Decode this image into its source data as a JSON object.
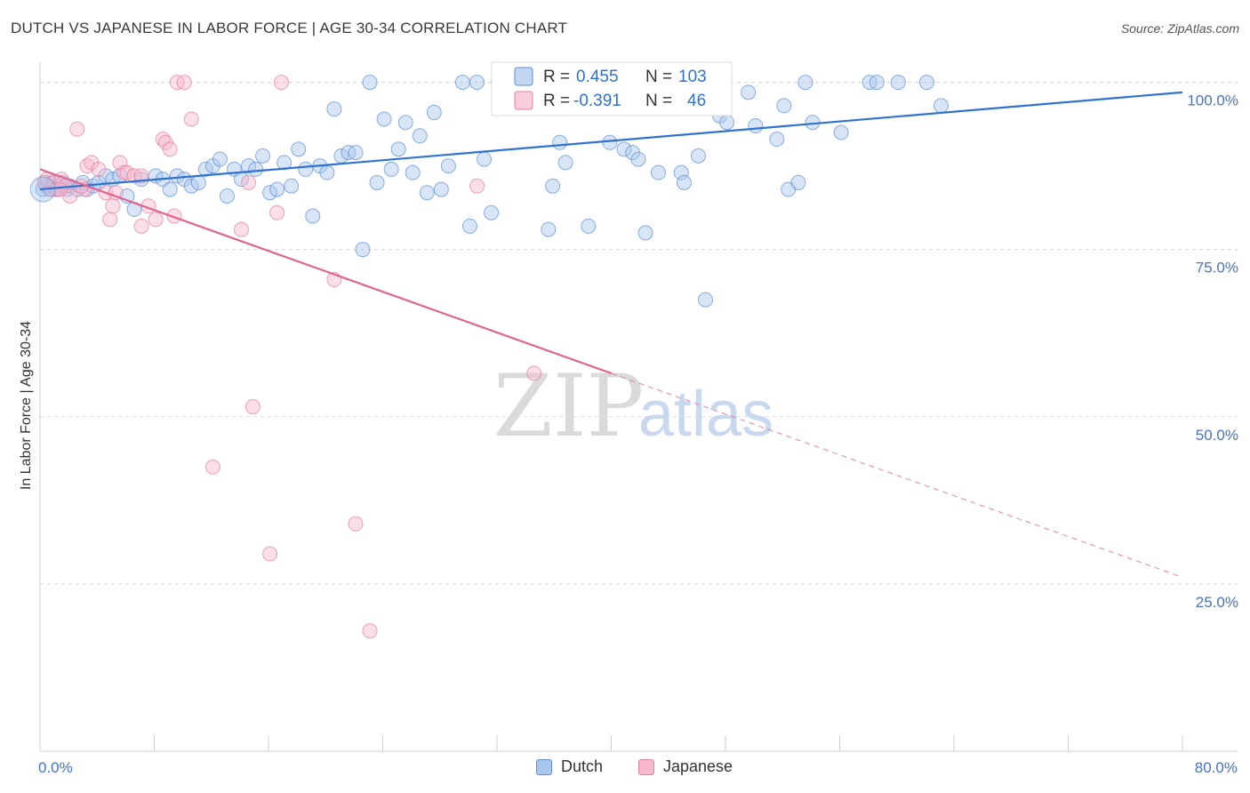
{
  "title": "DUTCH VS JAPANESE IN LABOR FORCE | AGE 30-34 CORRELATION CHART",
  "source": "Source: ZipAtlas.com",
  "watermark": {
    "zip": "ZIP",
    "atlas": "atlas"
  },
  "colors": {
    "dutch_fill": "#a9c6ee",
    "dutch_stroke": "#5b8fd6",
    "dutch_line": "#2e72d2",
    "japanese_fill": "#f6b8cc",
    "japanese_stroke": "#e77ea2",
    "japanese_line": "#e0648f",
    "tick_label": "#4a72c4",
    "grid": "#d8d8d8"
  },
  "legend_top": [
    {
      "name": "dutch",
      "r_label": "R =",
      "r_value": "0.455",
      "n_label": "N =",
      "n_value": "103"
    },
    {
      "name": "japanese",
      "r_label": "R =",
      "r_value": "-0.391",
      "n_label": "N =",
      "n_value": "46"
    }
  ],
  "legend_bottom": [
    {
      "label": "Dutch"
    },
    {
      "label": "Japanese"
    }
  ],
  "chart_data": {
    "type": "scatter",
    "ylabel": "In Labor Force | Age 30-34",
    "xlim": [
      0,
      80
    ],
    "ylim": [
      0,
      103
    ],
    "x_ticks": [
      0,
      8,
      16,
      24,
      32,
      40,
      48,
      56,
      64,
      72,
      80
    ],
    "x_tick_labels": [
      {
        "value": 0,
        "label": "0.0%"
      },
      {
        "value": 80,
        "label": "80.0%"
      }
    ],
    "y_ticks": [
      {
        "value": 100,
        "label": "100.0%"
      },
      {
        "value": 75,
        "label": "75.0%"
      },
      {
        "value": 50,
        "label": "50.0%"
      },
      {
        "value": 25,
        "label": "25.0%"
      }
    ],
    "grid": true,
    "series": [
      {
        "name": "Dutch",
        "points": [
          [
            0.2,
            84
          ],
          [
            0.4,
            85
          ],
          [
            0.5,
            84.5
          ],
          [
            0.7,
            84
          ],
          [
            0.9,
            85
          ],
          [
            1.1,
            84
          ],
          [
            1.3,
            84.5
          ],
          [
            1.6,
            85
          ],
          [
            1.9,
            84
          ],
          [
            2.1,
            84.5
          ],
          [
            2.6,
            84
          ],
          [
            3.0,
            85
          ],
          [
            3.3,
            84
          ],
          [
            3.7,
            84.5
          ],
          [
            4.1,
            85
          ],
          [
            4.6,
            86
          ],
          [
            5.1,
            85.5
          ],
          [
            5.6,
            86
          ],
          [
            6.1,
            83
          ],
          [
            6.6,
            81
          ],
          [
            7.1,
            85.5
          ],
          [
            8.1,
            86
          ],
          [
            8.6,
            85.5
          ],
          [
            9.1,
            84
          ],
          [
            9.6,
            86
          ],
          [
            10.1,
            85.5
          ],
          [
            10.6,
            84.5
          ],
          [
            11.1,
            85
          ],
          [
            11.6,
            87
          ],
          [
            12.1,
            87.5
          ],
          [
            12.6,
            88.5
          ],
          [
            13.1,
            83
          ],
          [
            13.6,
            87
          ],
          [
            14.1,
            85.5
          ],
          [
            14.6,
            87.5
          ],
          [
            15.1,
            87
          ],
          [
            15.6,
            89
          ],
          [
            16.1,
            83.5
          ],
          [
            16.6,
            84
          ],
          [
            17.1,
            88
          ],
          [
            17.6,
            84.5
          ],
          [
            18.1,
            90
          ],
          [
            18.6,
            87
          ],
          [
            19.1,
            80
          ],
          [
            19.6,
            87.5
          ],
          [
            20.1,
            86.5
          ],
          [
            20.6,
            96
          ],
          [
            21.1,
            89
          ],
          [
            21.6,
            89.5
          ],
          [
            22.1,
            89.5
          ],
          [
            22.6,
            75
          ],
          [
            23.1,
            100
          ],
          [
            23.6,
            85
          ],
          [
            24.1,
            94.5
          ],
          [
            24.6,
            87
          ],
          [
            25.1,
            90
          ],
          [
            25.6,
            94
          ],
          [
            26.1,
            86.5
          ],
          [
            26.6,
            92
          ],
          [
            27.1,
            83.5
          ],
          [
            27.6,
            95.5
          ],
          [
            28.1,
            84
          ],
          [
            28.6,
            87.5
          ],
          [
            29.6,
            100
          ],
          [
            30.1,
            78.5
          ],
          [
            30.6,
            100
          ],
          [
            31.1,
            88.5
          ],
          [
            31.6,
            80.5
          ],
          [
            32.1,
            100
          ],
          [
            32.6,
            100
          ],
          [
            35.6,
            78
          ],
          [
            35.9,
            84.5
          ],
          [
            36.4,
            91
          ],
          [
            36.8,
            88
          ],
          [
            38.4,
            78.5
          ],
          [
            39.9,
            91
          ],
          [
            40.6,
            100
          ],
          [
            40.9,
            90
          ],
          [
            41.5,
            89.5
          ],
          [
            41.9,
            88.5
          ],
          [
            42.4,
            77.5
          ],
          [
            43.3,
            86.5
          ],
          [
            44.9,
            86.5
          ],
          [
            45.1,
            85
          ],
          [
            46.1,
            89
          ],
          [
            46.6,
            67.5
          ],
          [
            47.1,
            100
          ],
          [
            47.6,
            95
          ],
          [
            48.1,
            94
          ],
          [
            49.6,
            98.5
          ],
          [
            50.1,
            93.5
          ],
          [
            51.6,
            91.5
          ],
          [
            52.1,
            96.5
          ],
          [
            52.4,
            84
          ],
          [
            53.1,
            85
          ],
          [
            53.6,
            100
          ],
          [
            54.1,
            94
          ],
          [
            56.1,
            92.5
          ],
          [
            58.1,
            100
          ],
          [
            58.6,
            100
          ],
          [
            60.1,
            100
          ],
          [
            62.1,
            100
          ],
          [
            63.1,
            96.5
          ]
        ],
        "trendline": {
          "x": [
            0,
            80
          ],
          "y": [
            84,
            98.5
          ]
        }
      },
      {
        "name": "Japanese",
        "points": [
          [
            0.3,
            85
          ],
          [
            0.5,
            85.5
          ],
          [
            0.8,
            84
          ],
          [
            1.0,
            85
          ],
          [
            1.2,
            84
          ],
          [
            1.5,
            85.5
          ],
          [
            1.8,
            84.5
          ],
          [
            2.1,
            83
          ],
          [
            2.6,
            93
          ],
          [
            3.1,
            84
          ],
          [
            3.3,
            87.5
          ],
          [
            3.6,
            88
          ],
          [
            4.1,
            87
          ],
          [
            4.6,
            83.5
          ],
          [
            4.9,
            79.5
          ],
          [
            5.1,
            81.5
          ],
          [
            5.3,
            83.5
          ],
          [
            5.6,
            88
          ],
          [
            5.9,
            86.5
          ],
          [
            6.1,
            86.5
          ],
          [
            6.6,
            86
          ],
          [
            7.1,
            78.5
          ],
          [
            7.6,
            81.5
          ],
          [
            8.1,
            79.5
          ],
          [
            8.6,
            91.5
          ],
          [
            8.8,
            91
          ],
          [
            9.1,
            90
          ],
          [
            9.4,
            80
          ],
          [
            9.6,
            100
          ],
          [
            10.1,
            100
          ],
          [
            10.6,
            94.5
          ],
          [
            12.1,
            42.5
          ],
          [
            14.1,
            78
          ],
          [
            14.6,
            85
          ],
          [
            14.9,
            51.5
          ],
          [
            16.1,
            29.5
          ],
          [
            16.6,
            80.5
          ],
          [
            16.9,
            100
          ],
          [
            20.6,
            70.5
          ],
          [
            22.1,
            34
          ],
          [
            23.1,
            18
          ],
          [
            30.6,
            84.5
          ],
          [
            34.6,
            56.5
          ],
          [
            7.1,
            86
          ],
          [
            2.9,
            84.5
          ],
          [
            1.4,
            84
          ]
        ],
        "trendline": {
          "x": [
            0,
            40
          ],
          "y": [
            87,
            56.5
          ]
        },
        "trendline_dashed": {
          "x": [
            40,
            80
          ],
          "y": [
            56.5,
            26
          ]
        }
      }
    ]
  }
}
